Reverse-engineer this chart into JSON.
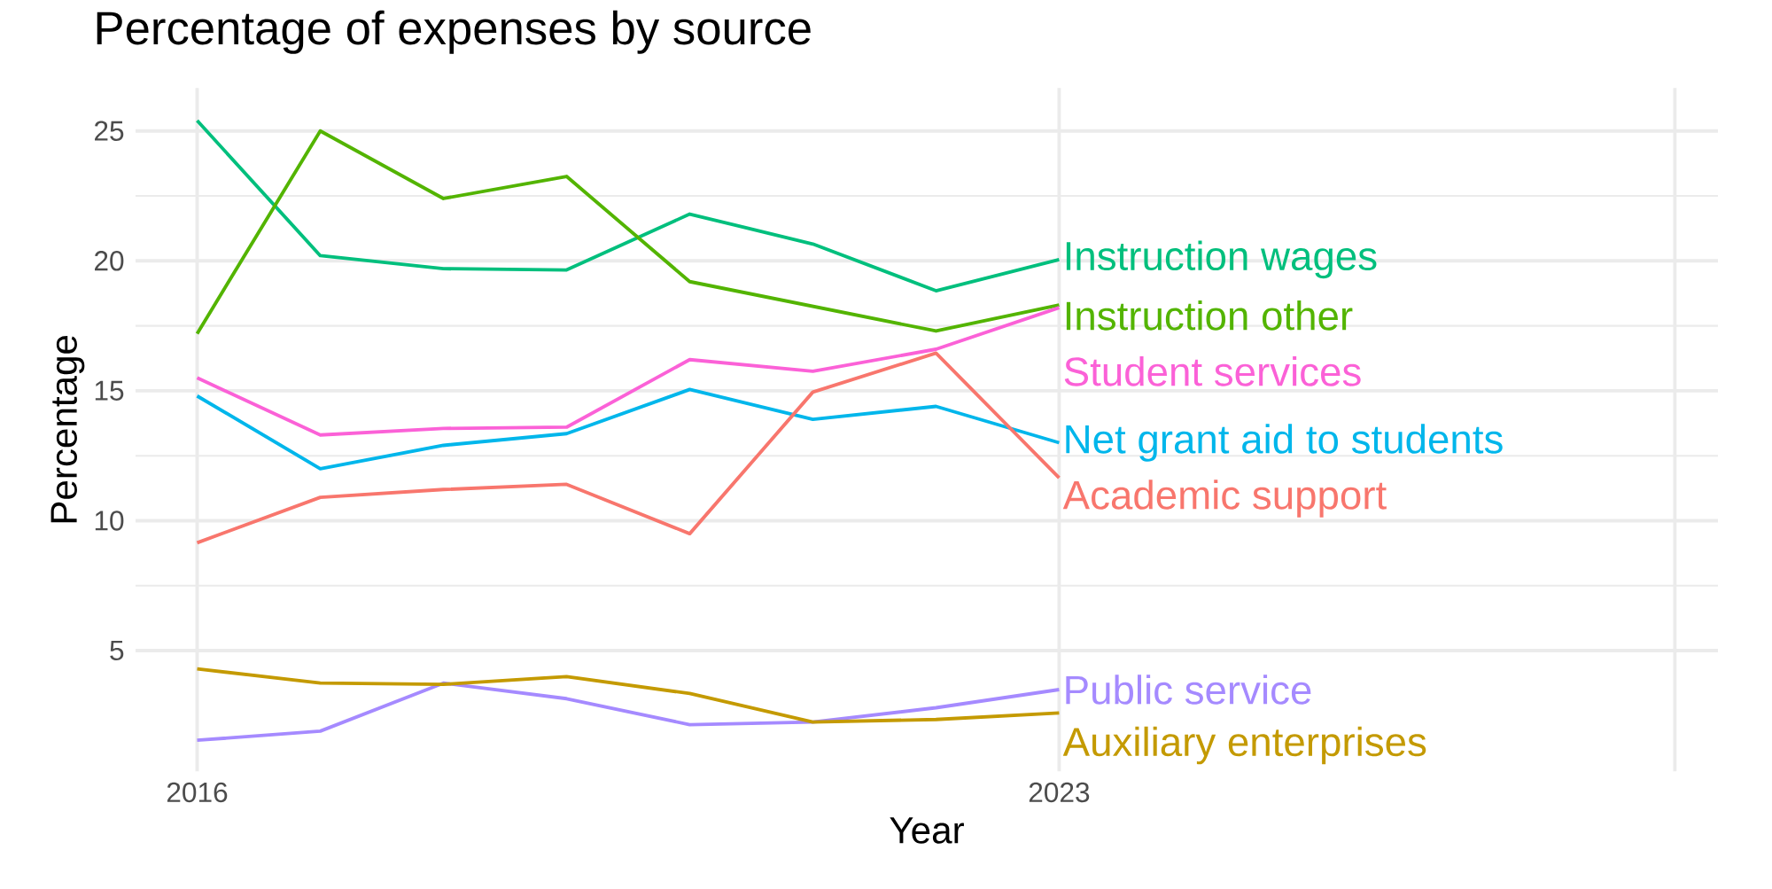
{
  "chart_data": {
    "type": "line",
    "title": "Percentage of expenses by source",
    "xlabel": "Year",
    "ylabel": "Percentage",
    "x": [
      2016,
      2017,
      2018,
      2019,
      2020,
      2021,
      2022,
      2023
    ],
    "series": [
      {
        "name": "Instruction wages",
        "color": "#00bf7d",
        "values": [
          25.4,
          20.2,
          19.7,
          19.65,
          21.8,
          20.65,
          18.85,
          20.05
        ]
      },
      {
        "name": "Instruction other",
        "color": "#53b400",
        "values": [
          17.2,
          25.0,
          22.4,
          23.25,
          19.2,
          18.25,
          17.3,
          18.3
        ]
      },
      {
        "name": "Student services",
        "color": "#fb61d7",
        "values": [
          15.5,
          13.3,
          13.55,
          13.6,
          16.2,
          15.75,
          16.6,
          18.2
        ]
      },
      {
        "name": "Net grant aid to students",
        "color": "#00b6eb",
        "values": [
          14.8,
          12.0,
          12.9,
          13.35,
          15.05,
          13.9,
          14.4,
          13.0
        ]
      },
      {
        "name": "Academic support",
        "color": "#f8766d",
        "values": [
          9.15,
          10.9,
          11.2,
          11.4,
          9.5,
          14.95,
          16.45,
          11.65
        ]
      },
      {
        "name": "Public service",
        "color": "#a58aff",
        "values": [
          1.55,
          1.9,
          3.75,
          3.15,
          2.15,
          2.25,
          2.8,
          3.5
        ]
      },
      {
        "name": "Auxiliary enterprises",
        "color": "#c49a00",
        "values": [
          4.3,
          3.75,
          3.7,
          4.0,
          3.35,
          2.25,
          2.35,
          2.6
        ]
      }
    ],
    "xlim": [
      2015.5,
      2028.35
    ],
    "ylim": [
      0.35,
      26.65
    ],
    "xticks": [
      2016,
      2023,
      {
        "value": 2028,
        "label": null
      }
    ],
    "yticks": [
      5,
      10,
      15,
      20,
      25
    ],
    "grid": true,
    "legend": false,
    "marker": "none",
    "line_style": "solid"
  }
}
